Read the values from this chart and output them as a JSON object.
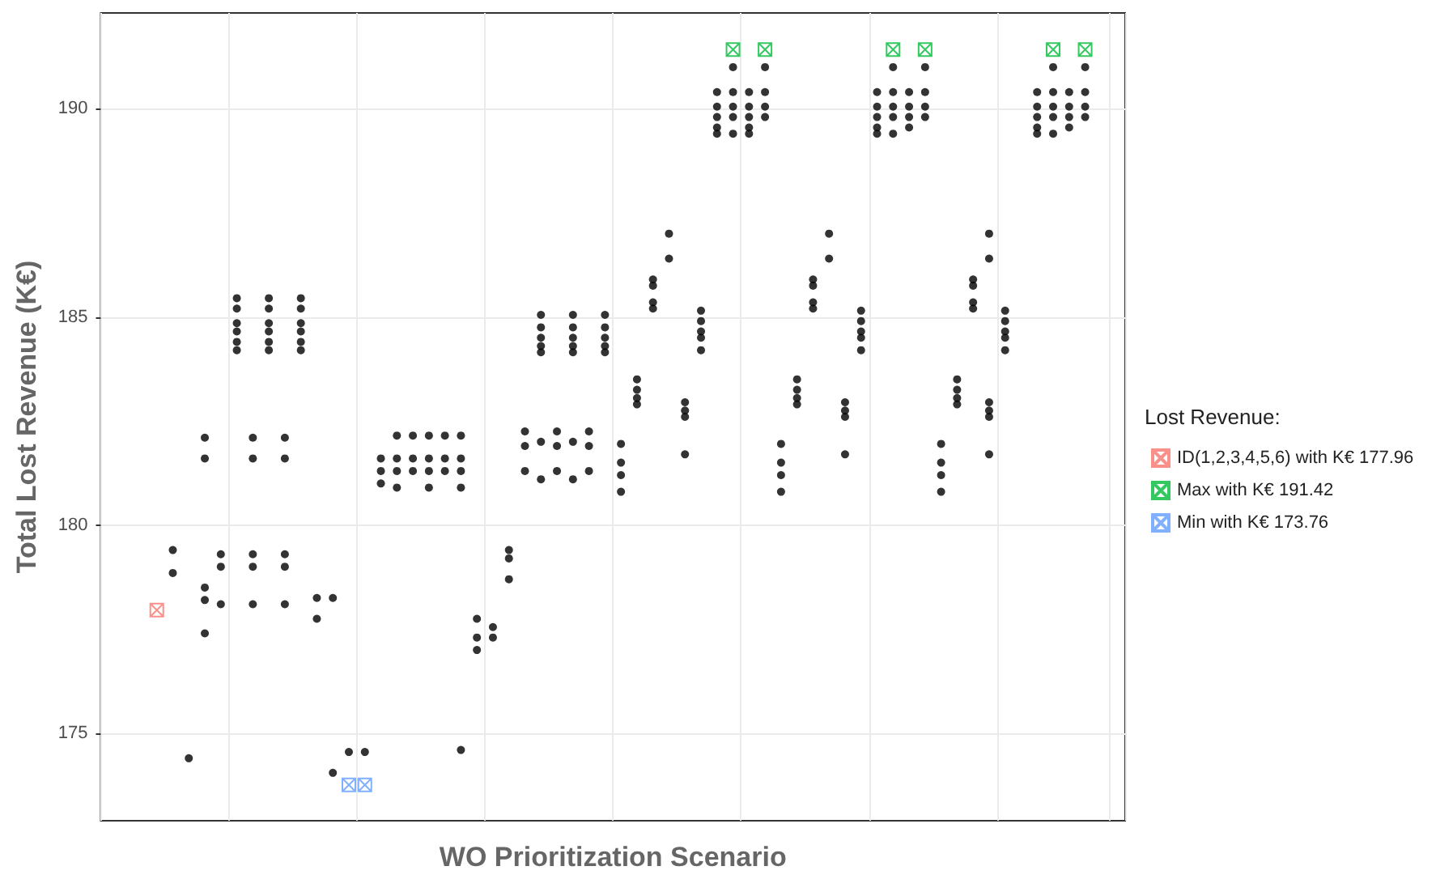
{
  "chart_data": {
    "type": "scatter",
    "xlabel": "WO Prioritization Scenario",
    "ylabel": "Total Lost Revenue (K€)",
    "legend_title": "Lost Revenue:",
    "legend": "right",
    "grid": true,
    "marker": "circle",
    "ylim": [
      172.9,
      192.3
    ],
    "yticks": [
      175,
      180,
      185,
      190
    ],
    "categories": [
      null,
      null,
      null,
      null,
      null,
      null,
      null,
      null,
      null,
      null,
      null,
      null,
      null,
      null,
      null,
      null,
      null,
      null,
      null,
      null,
      null,
      null,
      null,
      null,
      null,
      null,
      null,
      null,
      null,
      null,
      null,
      null,
      null,
      null,
      null,
      null,
      null,
      null,
      null,
      null,
      null,
      null,
      null,
      null,
      null,
      null,
      null,
      null,
      null,
      null,
      null,
      null,
      null,
      null,
      null,
      null,
      null,
      null,
      null,
      null,
      null,
      null,
      null,
      null
    ],
    "series": [
      {
        "color": "#000000",
        "values": [
          null,
          null,
          null,
          null,
          179.4,
          174.4,
          182.1,
          179.3,
          185.45,
          182.1,
          185.45,
          182.1,
          185.45,
          178.25,
          178.25,
          174.55,
          174.55,
          181.6,
          182.15,
          182.15,
          182.15,
          182.15,
          182.15,
          177.75,
          177.55,
          179.4,
          182.25,
          185.05,
          182.25,
          185.05,
          182.25,
          185.05,
          181.95,
          183.5,
          185.9,
          187.0,
          182.95,
          185.15,
          190.4,
          191.0,
          190.4,
          191.0,
          181.95,
          183.5,
          185.9,
          187.0,
          182.95,
          185.15,
          190.4,
          191.0,
          190.4,
          191.0,
          181.95,
          183.5,
          185.9,
          187.0,
          185.15,
          null,
          190.4,
          191.0,
          190.4,
          191.0,
          null,
          null
        ]
      },
      {
        "color": "#000000",
        "values": [
          null,
          null,
          null,
          null,
          178.85,
          null,
          181.6,
          179.0,
          185.2,
          181.6,
          185.2,
          181.6,
          185.2,
          177.75,
          174.05,
          null,
          null,
          181.3,
          181.6,
          181.6,
          181.6,
          181.6,
          181.6,
          177.3,
          177.3,
          179.2,
          181.9,
          184.75,
          181.9,
          184.75,
          181.9,
          184.75,
          181.5,
          183.25,
          185.75,
          186.4,
          182.75,
          184.9,
          190.05,
          190.4,
          190.05,
          190.4,
          181.5,
          183.25,
          185.75,
          186.4,
          182.75,
          184.9,
          190.05,
          190.4,
          190.05,
          190.4,
          181.5,
          183.25,
          185.75,
          186.4,
          184.9,
          null,
          190.05,
          190.4,
          190.05,
          190.4,
          null,
          null
        ]
      },
      {
        "color": "#000000",
        "values": [
          null,
          null,
          null,
          null,
          null,
          null,
          178.5,
          178.1,
          184.85,
          179.3,
          184.85,
          179.3,
          184.85,
          null,
          null,
          null,
          null,
          181.0,
          181.3,
          181.3,
          181.3,
          181.3,
          181.3,
          177.0,
          null,
          178.7,
          181.3,
          184.5,
          181.3,
          184.5,
          181.3,
          184.5,
          181.2,
          183.05,
          185.35,
          null,
          182.6,
          184.65,
          189.8,
          190.05,
          189.8,
          190.05,
          181.2,
          183.05,
          185.35,
          null,
          182.6,
          184.65,
          189.8,
          190.05,
          189.8,
          190.05,
          181.2,
          183.05,
          185.35,
          182.95,
          184.65,
          null,
          189.8,
          190.05,
          189.8,
          190.05,
          null,
          null
        ]
      },
      {
        "color": "#000000",
        "values": [
          null,
          null,
          null,
          null,
          null,
          null,
          178.2,
          null,
          184.65,
          179.0,
          184.65,
          179.0,
          184.65,
          null,
          null,
          null,
          null,
          null,
          180.9,
          null,
          180.9,
          null,
          180.9,
          null,
          null,
          null,
          null,
          184.3,
          null,
          184.3,
          null,
          184.3,
          180.8,
          182.9,
          185.2,
          null,
          181.7,
          184.5,
          189.55,
          189.8,
          189.55,
          189.8,
          180.8,
          182.9,
          185.2,
          null,
          181.7,
          184.5,
          189.55,
          189.8,
          189.55,
          189.8,
          180.8,
          182.9,
          185.2,
          182.75,
          184.5,
          null,
          189.55,
          189.8,
          189.55,
          189.8,
          null,
          null
        ]
      },
      {
        "color": "#000000",
        "values": [
          null,
          null,
          null,
          null,
          null,
          null,
          177.4,
          null,
          184.4,
          178.1,
          184.4,
          178.1,
          184.4,
          null,
          null,
          null,
          null,
          null,
          null,
          null,
          null,
          null,
          174.6,
          null,
          null,
          null,
          null,
          184.15,
          null,
          184.15,
          null,
          184.15,
          null,
          null,
          null,
          null,
          null,
          184.2,
          189.4,
          189.4,
          189.4,
          null,
          null,
          null,
          null,
          null,
          null,
          184.2,
          189.4,
          189.4,
          null,
          null,
          null,
          null,
          null,
          182.6,
          184.2,
          null,
          189.4,
          189.4,
          null,
          null,
          null,
          null
        ]
      },
      {
        "color": "#000000",
        "values": [
          null,
          null,
          null,
          null,
          null,
          null,
          null,
          null,
          184.2,
          null,
          184.2,
          null,
          184.2,
          null,
          null,
          null,
          null,
          null,
          null,
          null,
          null,
          null,
          null,
          null,
          null,
          null,
          null,
          182.0,
          null,
          182.0,
          null,
          null,
          null,
          null,
          null,
          null,
          null,
          null,
          null,
          null,
          null,
          null,
          null,
          null,
          null,
          null,
          null,
          null,
          null,
          null,
          null,
          null,
          null,
          null,
          null,
          181.7,
          null,
          null,
          null,
          null,
          null,
          null,
          null,
          null
        ]
      },
      {
        "color": "#000000",
        "values": [
          null,
          null,
          null,
          null,
          null,
          null,
          null,
          null,
          null,
          null,
          null,
          null,
          null,
          null,
          null,
          null,
          null,
          null,
          null,
          null,
          null,
          null,
          null,
          null,
          null,
          null,
          null,
          181.1,
          null,
          181.1,
          null,
          null,
          null,
          null,
          null,
          null,
          null,
          null,
          null,
          null,
          null,
          null,
          null,
          null,
          null,
          null,
          null,
          null,
          null,
          null,
          null,
          null,
          null,
          null,
          null,
          null,
          null,
          null,
          null,
          null,
          null,
          null,
          null,
          null
        ]
      },
      {
        "name": "ID(1,2,3,4,5,6) with K€ 177.96",
        "color": "#f8766d",
        "marker": "cross",
        "values": [
          null,
          null,
          null,
          177.96,
          null,
          null,
          null,
          null,
          null,
          null,
          null,
          null,
          null,
          null,
          null,
          null,
          null,
          null,
          null,
          null,
          null,
          null,
          null,
          null,
          null,
          null,
          null,
          null,
          null,
          null,
          null,
          null,
          null,
          null,
          null,
          null,
          null,
          null,
          null,
          null,
          null,
          null,
          null,
          null,
          null,
          null,
          null,
          null,
          null,
          null,
          null,
          null,
          null,
          null,
          null,
          null,
          null,
          null,
          null,
          null,
          null,
          null,
          null,
          null
        ]
      },
      {
        "name": "Max with K€ 191.42",
        "color": "#00ba38",
        "marker": "cross",
        "values": [
          null,
          null,
          null,
          null,
          null,
          null,
          null,
          null,
          null,
          null,
          null,
          null,
          null,
          null,
          null,
          null,
          null,
          null,
          null,
          null,
          null,
          null,
          null,
          null,
          null,
          null,
          null,
          null,
          null,
          null,
          null,
          null,
          null,
          null,
          null,
          null,
          null,
          null,
          null,
          191.42,
          null,
          191.42,
          null,
          null,
          null,
          null,
          null,
          null,
          null,
          191.42,
          null,
          191.42,
          null,
          null,
          null,
          null,
          null,
          null,
          null,
          191.42,
          null,
          191.42,
          null,
          null
        ]
      },
      {
        "name": "Min with K€ 173.76",
        "color": "#619cff",
        "marker": "cross",
        "values": [
          null,
          null,
          null,
          null,
          null,
          null,
          null,
          null,
          null,
          null,
          null,
          null,
          null,
          null,
          null,
          173.76,
          173.76,
          null,
          null,
          null,
          null,
          null,
          null,
          null,
          null,
          null,
          null,
          null,
          null,
          null,
          null,
          null,
          null,
          null,
          null,
          null,
          null,
          null,
          null,
          null,
          null,
          null,
          null,
          null,
          null,
          null,
          null,
          null,
          null,
          null,
          null,
          null,
          null,
          null,
          null,
          null,
          null,
          null,
          null,
          null,
          null,
          null,
          null,
          null
        ]
      }
    ]
  }
}
